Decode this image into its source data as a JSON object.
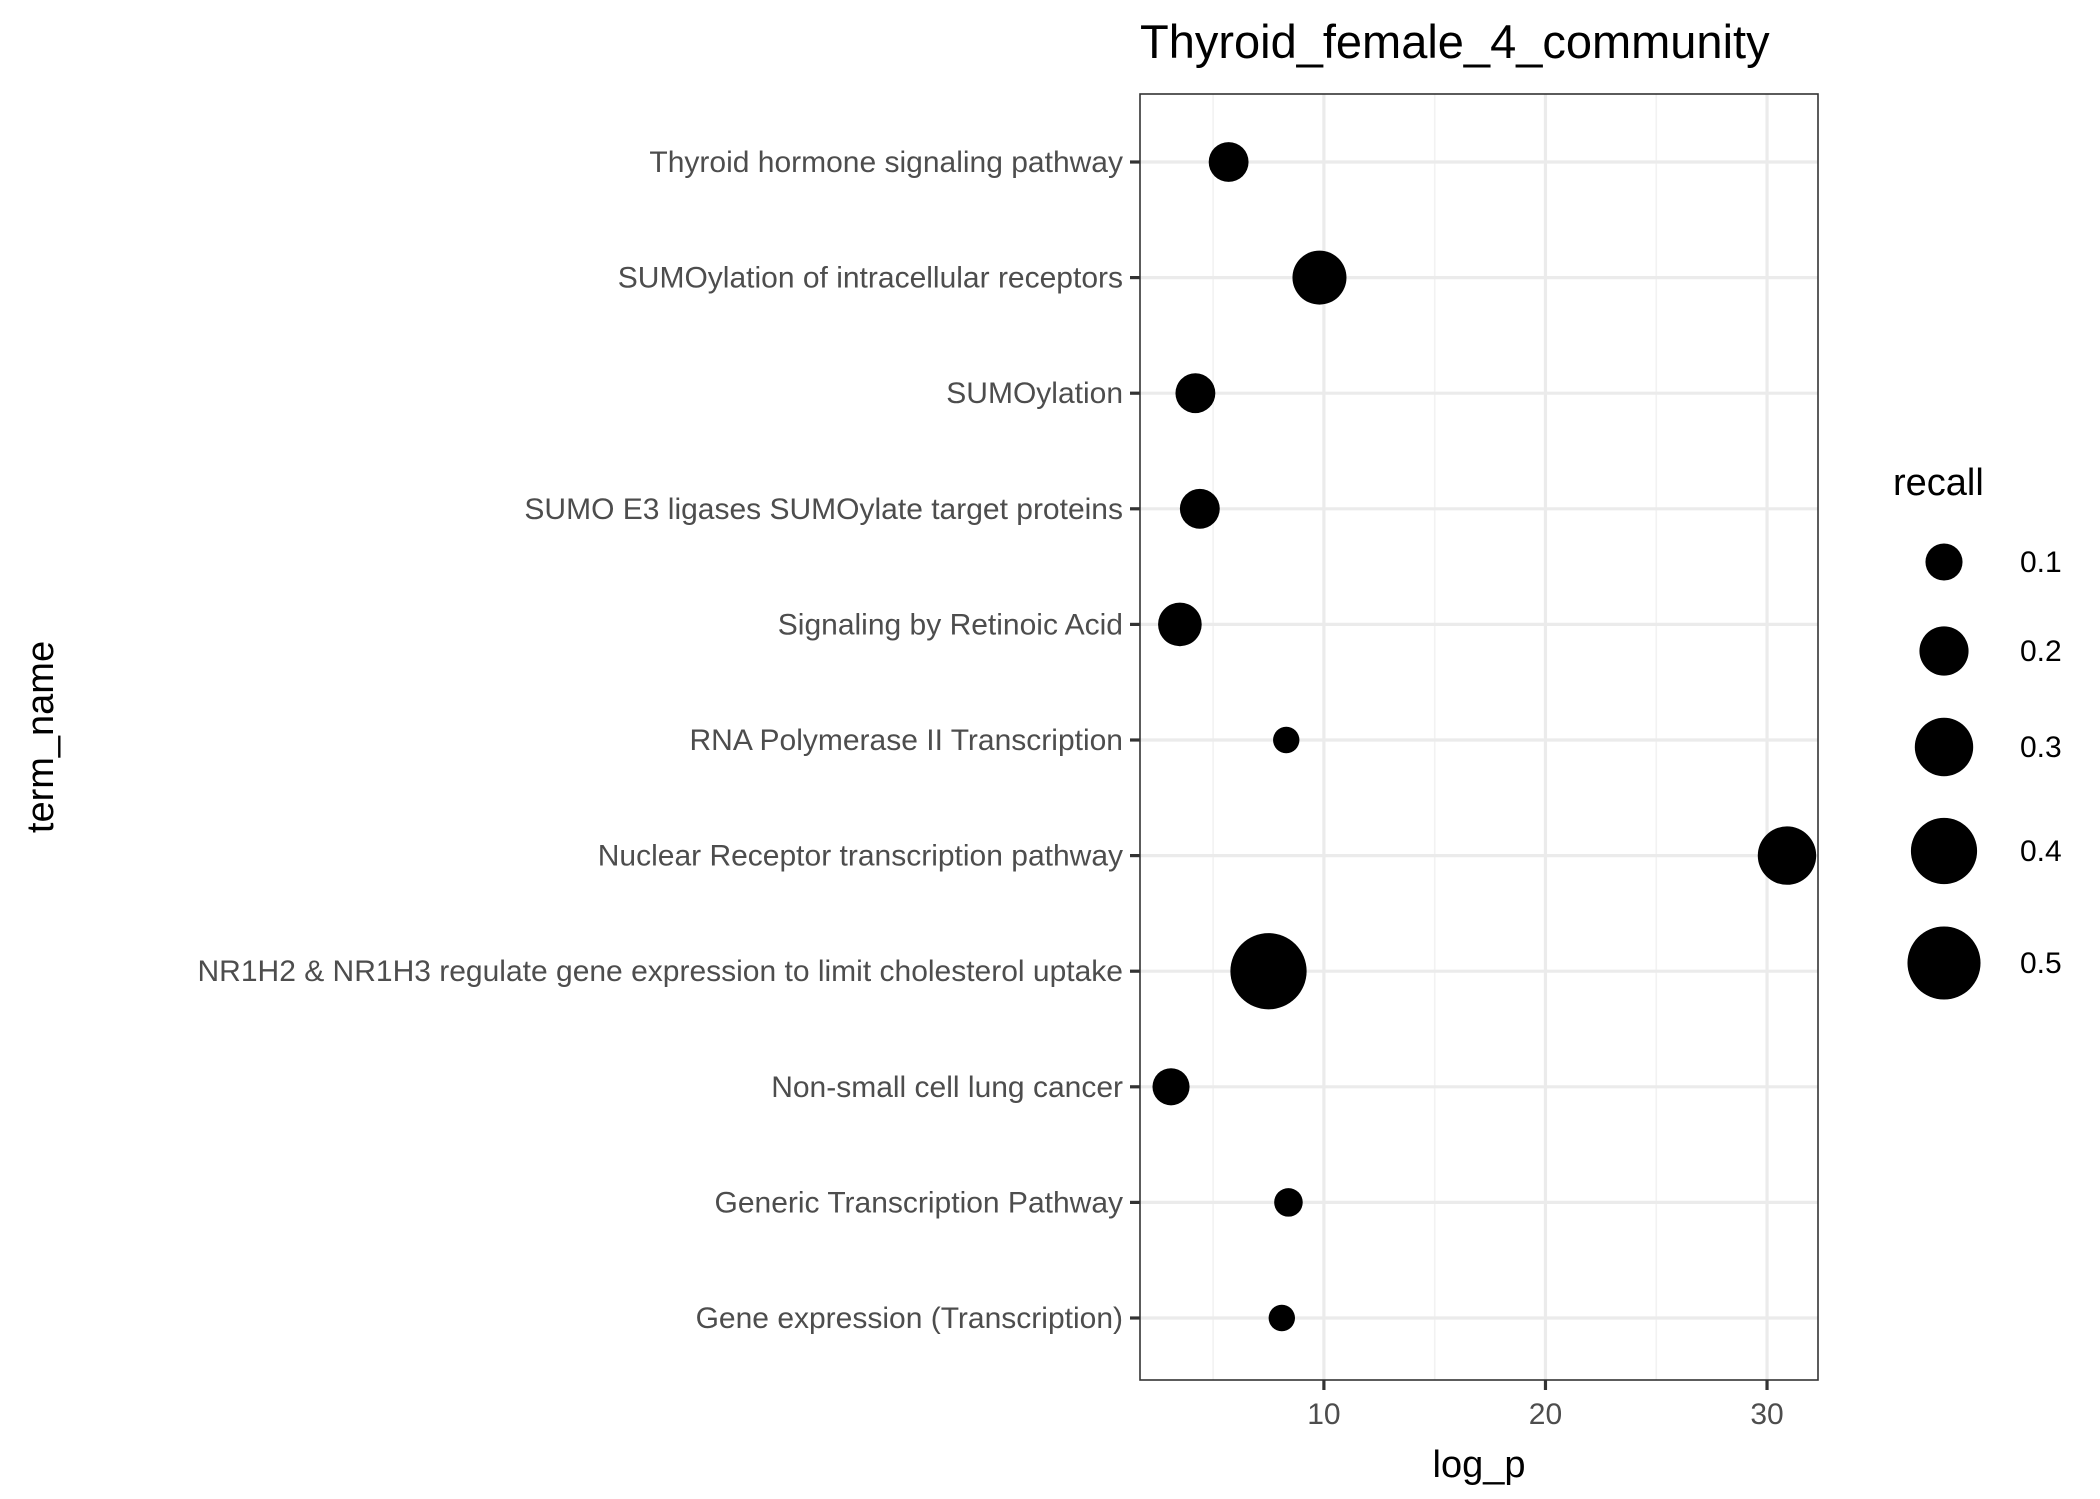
{
  "chart_data": {
    "type": "scatter",
    "title": "Thyroid_female_4_community",
    "xlabel": "log_p",
    "ylabel": "term_name",
    "xlim": [
      1.7,
      32.3
    ],
    "xticks": [
      10,
      20,
      30
    ],
    "grid": true,
    "legend": {
      "title": "recall",
      "placement": "right",
      "entries": [
        {
          "label": "0.1",
          "value": 0.1
        },
        {
          "label": "0.2",
          "value": 0.2
        },
        {
          "label": "0.3",
          "value": 0.3
        },
        {
          "label": "0.4",
          "value": 0.4
        },
        {
          "label": "0.5",
          "value": 0.5
        }
      ]
    },
    "points": [
      {
        "term": "Thyroid hormone signaling pathway",
        "log_p": 5.7,
        "recall": 0.12
      },
      {
        "term": "SUMOylation of intracellular receptors",
        "log_p": 9.8,
        "recall": 0.25
      },
      {
        "term": "SUMOylation",
        "log_p": 4.2,
        "recall": 0.12
      },
      {
        "term": "SUMO E3 ligases SUMOylate target proteins",
        "log_p": 4.4,
        "recall": 0.12
      },
      {
        "term": "Signaling by Retinoic Acid",
        "log_p": 3.5,
        "recall": 0.15
      },
      {
        "term": "RNA Polymerase II Transcription",
        "log_p": 8.3,
        "recall": 0.04
      },
      {
        "term": "Nuclear Receptor transcription pathway",
        "log_p": 30.9,
        "recall": 0.3
      },
      {
        "term": "NR1H2 & NR1H3 regulate gene expression to limit cholesterol uptake",
        "log_p": 7.5,
        "recall": 0.55
      },
      {
        "term": "Non-small cell lung cancer",
        "log_p": 3.1,
        "recall": 0.1
      },
      {
        "term": "Generic Transcription Pathway",
        "log_p": 8.4,
        "recall": 0.05
      },
      {
        "term": "Gene expression (Transcription)",
        "log_p": 8.1,
        "recall": 0.04
      }
    ],
    "colors": {
      "point": "#000000",
      "grid_major": "#ebebeb",
      "grid_minor": "#f2f2f2",
      "panel_border": "#333333",
      "tick_text": "#4d4d4d"
    }
  }
}
